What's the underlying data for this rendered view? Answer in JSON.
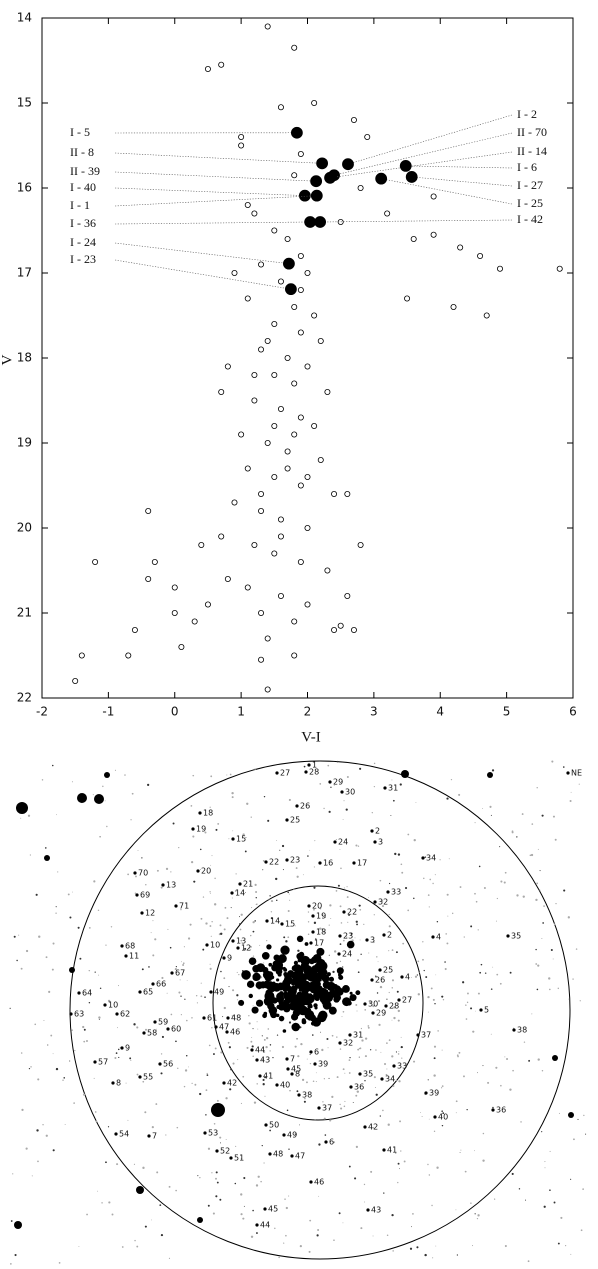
{
  "chart_data": {
    "type": "scatter",
    "x_label": "V-I",
    "y_label": "V",
    "xlim": [
      -2,
      6
    ],
    "ylim": [
      22,
      14
    ],
    "xticks": [
      -2,
      -1,
      0,
      1,
      2,
      3,
      4,
      5,
      6
    ],
    "yticks": [
      14,
      15,
      16,
      17,
      18,
      19,
      20,
      21,
      22
    ],
    "series": [
      {
        "color": "#000000",
        "filled": false,
        "x": [
          1.4,
          1.8,
          0.5,
          0.7,
          1.6,
          2.1,
          2.7,
          1.0,
          2.9,
          1.0,
          1.9,
          1.8,
          3.9,
          1.1,
          1.2,
          2.8,
          3.9,
          4.3,
          4.6,
          4.9,
          5.8,
          3.5,
          4.2,
          4.7,
          2.5,
          1.5,
          1.7,
          1.9,
          1.3,
          2.0,
          1.6,
          1.1,
          1.8,
          2.1,
          1.5,
          1.9,
          2.2,
          1.3,
          1.7,
          2.0,
          0.8,
          1.5,
          1.8,
          2.3,
          0.7,
          1.2,
          1.6,
          1.9,
          2.1,
          1.0,
          1.4,
          1.7,
          2.2,
          1.1,
          1.5,
          1.9,
          2.4,
          0.9,
          1.3,
          1.6,
          2.0,
          0.7,
          1.2,
          1.5,
          1.9,
          2.3,
          0.4,
          0.8,
          1.1,
          1.6,
          2.0,
          2.6,
          0.5,
          1.3,
          1.8,
          2.4,
          0.3,
          -0.4,
          -1.2,
          -0.4,
          -0.3,
          0.0,
          -0.6,
          -0.7,
          -1.4,
          -1.5,
          0.0,
          0.1,
          1.4,
          1.3,
          1.4,
          1.8,
          2.7,
          2.5,
          3.6,
          3.2,
          2.6,
          2.8,
          0.9,
          1.7,
          1.5,
          1.3,
          1.8,
          2.0,
          1.6,
          1.2,
          1.9,
          1.4
        ],
        "values": [
          14.1,
          14.35,
          14.6,
          14.55,
          15.05,
          15.0,
          15.2,
          15.4,
          15.4,
          15.5,
          15.6,
          15.85,
          16.1,
          16.2,
          16.3,
          16.0,
          16.55,
          16.7,
          16.8,
          16.95,
          16.95,
          17.3,
          17.4,
          17.5,
          16.4,
          16.5,
          16.6,
          16.8,
          16.9,
          17.0,
          17.1,
          17.3,
          17.4,
          17.5,
          17.6,
          17.7,
          17.8,
          17.9,
          18.0,
          18.1,
          18.1,
          18.2,
          18.3,
          18.4,
          18.4,
          18.5,
          18.6,
          18.7,
          18.8,
          18.9,
          19.0,
          19.1,
          19.2,
          19.3,
          19.4,
          19.5,
          19.6,
          19.7,
          19.8,
          19.9,
          20.0,
          20.1,
          20.2,
          20.3,
          20.4,
          20.5,
          20.2,
          20.6,
          20.7,
          20.8,
          20.9,
          20.8,
          20.9,
          21.0,
          21.1,
          21.2,
          21.1,
          19.8,
          20.4,
          20.6,
          20.4,
          20.7,
          21.2,
          21.5,
          21.5,
          21.8,
          21.0,
          21.4,
          21.3,
          21.55,
          21.9,
          21.5,
          21.2,
          21.15,
          16.6,
          16.3,
          19.6,
          20.2,
          17.0,
          19.3,
          18.8,
          19.6,
          18.9,
          19.4,
          20.1,
          18.2,
          17.2,
          17.8
        ]
      },
      {
        "color": "#000000",
        "filled": true,
        "x": [
          1.84,
          2.22,
          2.13,
          1.96,
          2.14,
          2.04,
          1.72,
          1.75,
          2.61,
          2.4,
          2.34,
          3.48,
          3.57,
          3.11,
          2.19
        ],
        "values": [
          15.35,
          15.71,
          15.92,
          16.09,
          16.09,
          16.4,
          16.89,
          17.19,
          15.72,
          15.85,
          15.88,
          15.74,
          15.87,
          15.89,
          16.4
        ],
        "labels": [
          "I - 5",
          "II - 8",
          "II - 39",
          "I - 40",
          "I - 1",
          "I - 36",
          "I - 24",
          "I - 23",
          "I - 2",
          "II - 70",
          "II - 14",
          "I - 6",
          "I - 27",
          "I - 25",
          "I - 42"
        ]
      }
    ]
  },
  "field": {
    "labels": [
      "1",
      "27",
      "28",
      "29",
      "30",
      "31",
      "NE",
      "26",
      "25",
      "18",
      "19",
      "15",
      "24",
      "2",
      "3",
      "34",
      "22",
      "23",
      "16",
      "17",
      "20",
      "70",
      "13",
      "21",
      "14",
      "69",
      "33",
      "32",
      "71",
      "12",
      "20",
      "19",
      "22",
      "14",
      "15",
      "18",
      "17",
      "23",
      "3",
      "2",
      "4",
      "35",
      "10",
      "13",
      "12",
      "68",
      "11",
      "9",
      "24",
      "25",
      "26",
      "4",
      "67",
      "66",
      "65",
      "64",
      "49",
      "27",
      "28",
      "30",
      "29",
      "5",
      "10",
      "62",
      "63",
      "61",
      "48",
      "59",
      "60",
      "58",
      "47",
      "46",
      "37",
      "38",
      "31",
      "32",
      "44",
      "43",
      "6",
      "45",
      "7",
      "39",
      "9",
      "56",
      "57",
      "55",
      "33",
      "35",
      "34",
      "8",
      "42",
      "41",
      "40",
      "8",
      "36",
      "38",
      "39",
      "37",
      "36",
      "40",
      "54",
      "7",
      "53",
      "50",
      "49",
      "42",
      "6",
      "52",
      "51",
      "48",
      "47",
      "41",
      "46",
      "45",
      "43",
      "44"
    ]
  }
}
